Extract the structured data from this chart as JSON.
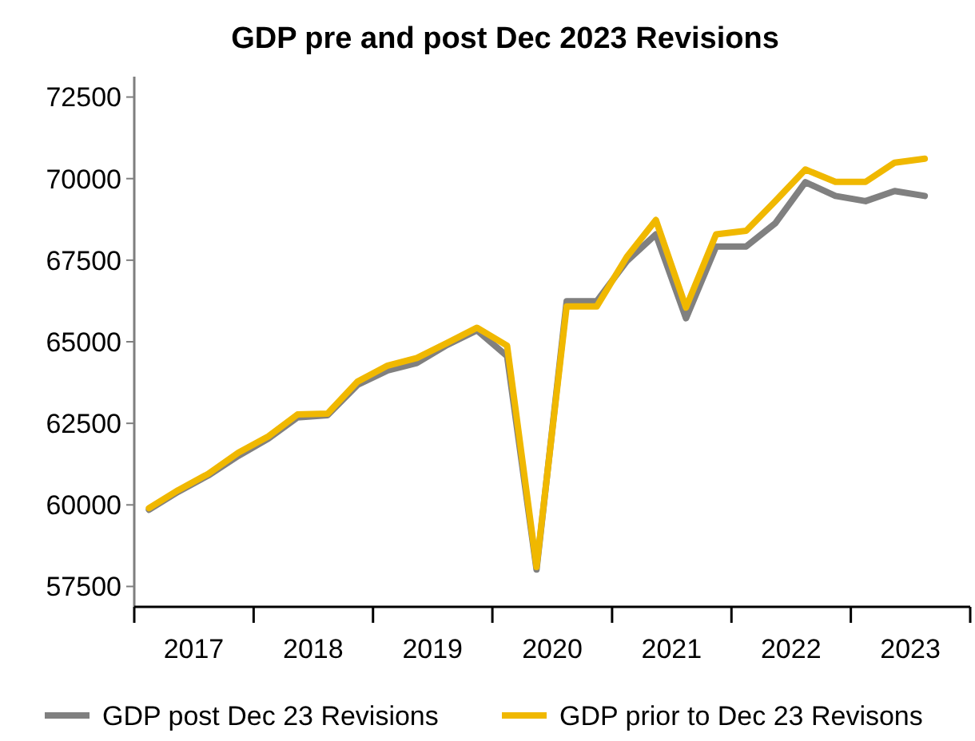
{
  "chart_data": {
    "type": "line",
    "title": "GDP pre and post Dec 2023 Revisions",
    "x": [
      "2017-02-15",
      "2017-05-15",
      "2017-08-15",
      "2017-11-15",
      "2018-02-15",
      "2018-05-15",
      "2018-08-15",
      "2018-11-15",
      "2019-02-15",
      "2019-05-15",
      "2019-08-15",
      "2019-11-15",
      "2020-02-15",
      "2020-05-15",
      "2020-08-15",
      "2020-11-15",
      "2021-02-15",
      "2021-05-15",
      "2021-08-15",
      "2021-11-15",
      "2022-02-15",
      "2022-05-15",
      "2022-08-15",
      "2022-11-15",
      "2023-02-15",
      "2023-05-15",
      "2023-08-15"
    ],
    "series": [
      {
        "name": "GDP post Dec 23 Revisions",
        "color": "#808080",
        "values": [
          59850,
          60400,
          60900,
          61500,
          62030,
          62680,
          62750,
          63680,
          64120,
          64350,
          64900,
          65350,
          64560,
          58020,
          66240,
          66240,
          67470,
          68290,
          65720,
          67920,
          67920,
          68630,
          69890,
          69470,
          69310,
          69620,
          69470
        ]
      },
      {
        "name": "GDP prior to Dec 23 Revisons",
        "color": "#f0b800",
        "values": [
          59900,
          60450,
          60950,
          61600,
          62100,
          62770,
          62800,
          63780,
          64270,
          64500,
          64960,
          65430,
          64880,
          58100,
          66080,
          66080,
          67600,
          68730,
          66050,
          68290,
          68400,
          69310,
          70280,
          69900,
          69900,
          70490,
          70610
        ]
      }
    ],
    "xlim": [
      "2017-01-01",
      "2024-01-01"
    ],
    "xticks": [
      {
        "value": "2017-01-01",
        "label": null
      },
      {
        "value": "2018-01-01",
        "label": null
      },
      {
        "value": "2019-01-01",
        "label": null
      },
      {
        "value": "2020-01-01",
        "label": null
      },
      {
        "value": "2021-01-01",
        "label": null
      },
      {
        "value": "2022-01-01",
        "label": null
      },
      {
        "value": "2023-01-01",
        "label": null
      },
      {
        "value": "2024-01-01",
        "label": null
      },
      {
        "value": "2017-07-02",
        "label": "2017"
      },
      {
        "value": "2018-07-02",
        "label": "2018"
      },
      {
        "value": "2019-07-02",
        "label": "2019"
      },
      {
        "value": "2020-07-02",
        "label": "2020"
      },
      {
        "value": "2021-07-02",
        "label": "2021"
      },
      {
        "value": "2022-07-02",
        "label": "2022"
      },
      {
        "value": "2023-07-02",
        "label": "2023"
      }
    ],
    "ylim": [
      56875,
      73125
    ],
    "yticks": [
      57500,
      60000,
      62500,
      65000,
      67500,
      70000,
      72500
    ],
    "grid": false,
    "legend": "bottom",
    "line_style": "solid",
    "marker": "none"
  }
}
